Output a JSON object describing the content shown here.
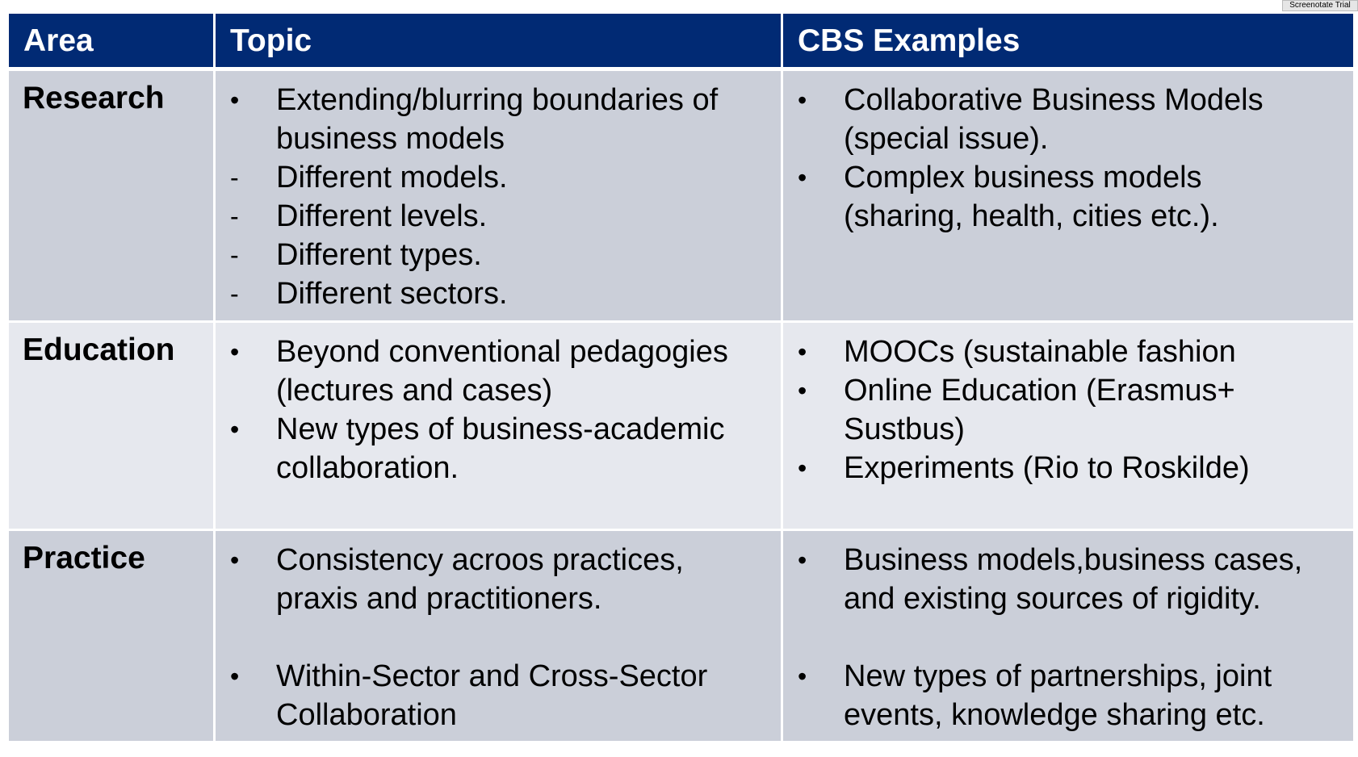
{
  "watermark": "Screenotate Trial",
  "table": {
    "headers": [
      "Area",
      "Topic",
      "CBS Examples"
    ],
    "rows": [
      {
        "area": "Research",
        "topic": [
          {
            "marker": "•",
            "text": "Extending/blurring boundaries of\nbusiness models"
          },
          {
            "marker": "-",
            "text": "Different models."
          },
          {
            "marker": "-",
            "text": "Different levels."
          },
          {
            "marker": "-",
            "text": "Different types."
          },
          {
            "marker": "-",
            "text": "Different sectors."
          }
        ],
        "examples": [
          {
            "marker": "•",
            "text": "Collaborative Business Models\n(special issue)."
          },
          {
            "marker": "•",
            "text": "Complex business models\n(sharing, health, cities etc.)."
          }
        ]
      },
      {
        "area": "Education",
        "topic": [
          {
            "marker": "•",
            "text": "Beyond conventional pedagogies\n(lectures and cases)"
          },
          {
            "marker": "•",
            "text": "New types of business-academic\ncollaboration."
          }
        ],
        "examples": [
          {
            "marker": "•",
            "text": "MOOCs (sustainable fashion"
          },
          {
            "marker": "•",
            "text": "Online Education (Erasmus+\nSustbus)"
          },
          {
            "marker": "•",
            "text": "Experiments (Rio to Roskilde)"
          }
        ]
      },
      {
        "area": "Practice",
        "topic": [
          {
            "marker": "•",
            "text": "Consistency acroos practices,\npraxis and practitioners."
          },
          {
            "marker": "•",
            "text": "Within-Sector and Cross-Sector\nCollaboration"
          }
        ],
        "examples": [
          {
            "marker": "•",
            "text": "Business models,business cases,\nand existing sources of rigidity."
          },
          {
            "marker": "•",
            "text": "New types of partnerships, joint\nevents, knowledge sharing etc."
          }
        ]
      }
    ]
  },
  "colors": {
    "header_bg": "#012a74",
    "header_text": "#ffffff",
    "row_dark": "#cbcfd9",
    "row_light": "#e6e8ee"
  }
}
